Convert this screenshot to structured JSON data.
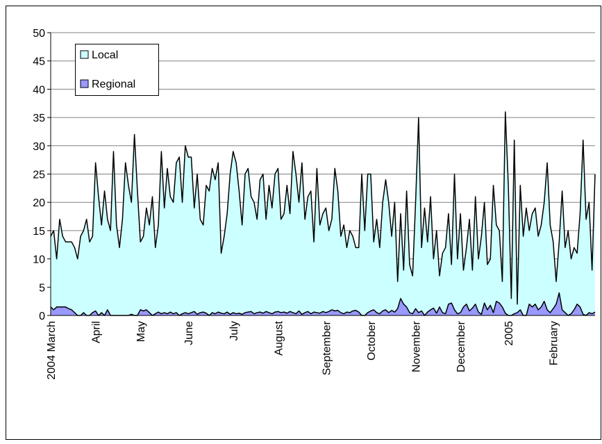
{
  "chart_data": {
    "type": "area",
    "categories": [
      "2004 March",
      null,
      null,
      null,
      null,
      null,
      null,
      null,
      null,
      null,
      null,
      null,
      null,
      null,
      null,
      "April",
      null,
      null,
      null,
      null,
      null,
      null,
      null,
      null,
      null,
      null,
      null,
      null,
      null,
      null,
      "May",
      null,
      null,
      null,
      null,
      null,
      null,
      null,
      null,
      null,
      null,
      null,
      null,
      null,
      null,
      null,
      "June",
      null,
      null,
      null,
      null,
      null,
      null,
      null,
      null,
      null,
      null,
      null,
      null,
      null,
      null,
      "July",
      null,
      null,
      null,
      null,
      null,
      null,
      null,
      null,
      null,
      null,
      null,
      null,
      null,
      null,
      "August",
      null,
      null,
      null,
      null,
      null,
      null,
      null,
      null,
      null,
      null,
      null,
      null,
      null,
      null,
      null,
      "September",
      null,
      null,
      null,
      null,
      null,
      null,
      null,
      null,
      null,
      null,
      null,
      null,
      null,
      null,
      "October",
      null,
      null,
      null,
      null,
      null,
      null,
      null,
      null,
      null,
      null,
      null,
      null,
      null,
      null,
      "November",
      null,
      null,
      null,
      null,
      null,
      null,
      null,
      null,
      null,
      null,
      null,
      null,
      null,
      null,
      "December",
      null,
      null,
      null,
      null,
      null,
      null,
      null,
      null,
      null,
      null,
      null,
      null,
      null,
      null,
      null,
      "2005",
      null,
      null,
      null,
      null,
      null,
      null,
      null,
      null,
      null,
      null,
      null,
      null,
      null,
      null,
      "February",
      null,
      null,
      null,
      null,
      null,
      null,
      null,
      null,
      null,
      null,
      null,
      null,
      null,
      null
    ],
    "series": [
      {
        "name": "Local",
        "color": "#ccffff",
        "values": [
          14,
          15,
          10,
          17,
          14,
          13,
          13,
          13,
          12,
          10,
          14,
          15,
          17,
          13,
          14,
          27,
          21,
          16,
          22,
          17,
          15,
          29,
          16,
          12,
          17,
          27,
          23,
          20,
          32,
          22,
          13,
          14,
          19,
          16,
          21,
          12,
          16,
          29,
          19,
          26,
          21,
          20,
          27,
          28,
          20,
          30,
          28,
          28,
          19,
          25,
          17,
          16,
          23,
          22,
          26,
          24,
          27,
          11,
          14,
          18,
          25,
          29,
          27,
          22,
          16,
          25,
          26,
          21,
          20,
          17,
          24,
          25,
          17,
          23,
          19,
          25,
          26,
          17,
          18,
          23,
          18,
          29,
          25,
          20,
          27,
          17,
          21,
          22,
          13,
          26,
          16,
          18,
          19,
          15,
          17,
          26,
          22,
          14,
          16,
          12,
          15,
          14,
          12,
          12,
          25,
          15,
          25,
          25,
          13,
          17,
          12,
          20,
          24,
          20,
          14,
          20,
          6,
          18,
          8,
          22,
          9,
          7,
          20,
          35,
          12,
          19,
          13,
          21,
          10,
          15,
          7,
          11,
          12,
          18,
          9,
          25,
          10,
          18,
          8,
          12,
          17,
          8,
          21,
          10,
          14,
          20,
          9,
          10,
          23,
          16,
          15,
          6,
          36,
          23,
          3,
          31,
          2,
          23,
          14,
          19,
          15,
          18,
          19,
          14,
          16,
          20,
          27,
          16,
          13,
          6,
          13,
          22,
          12,
          15,
          10,
          12,
          11,
          18,
          31,
          17,
          20,
          8,
          25
        ]
      },
      {
        "name": "Regional",
        "color": "#9999ff",
        "values": [
          1.5,
          1,
          1.5,
          1.5,
          1.5,
          1.5,
          1.2,
          1,
          0.5,
          0,
          0,
          0.5,
          0,
          0,
          0.5,
          0.8,
          0,
          0.5,
          0,
          1,
          0,
          0,
          0,
          0,
          0,
          0,
          0,
          0.2,
          0,
          0,
          1,
          0.8,
          1,
          0.5,
          0,
          0.3,
          0.6,
          0.3,
          0.5,
          0.3,
          0.6,
          0.3,
          0.5,
          0,
          0.3,
          0.5,
          0.3,
          0.5,
          0.7,
          0.2,
          0.5,
          0.6,
          0.4,
          0,
          0.5,
          0.3,
          0.6,
          0.4,
          0.3,
          0.6,
          0.2,
          0.5,
          0.3,
          0.4,
          0.2,
          0.5,
          0.6,
          0.7,
          0.3,
          0.5,
          0.6,
          0.4,
          0.7,
          0.5,
          0.3,
          0.6,
          0.7,
          0.5,
          0.6,
          0.4,
          0.7,
          0.5,
          0.3,
          0.8,
          0.2,
          0.5,
          0.7,
          0.3,
          0.6,
          0.5,
          0.4,
          0.7,
          0.5,
          0.7,
          1,
          0.8,
          0.9,
          0.5,
          0.3,
          0.6,
          0.5,
          0.8,
          0.9,
          0.6,
          0,
          0,
          0.5,
          0.8,
          1,
          0.5,
          0.3,
          0.8,
          1,
          0.5,
          0.9,
          0.6,
          1.2,
          3,
          2,
          1.5,
          0.5,
          0.3,
          1.2,
          0.5,
          0.8,
          0,
          0.6,
          1,
          1.3,
          0.4,
          1.5,
          0.5,
          0.3,
          2,
          2.2,
          1,
          0.3,
          0.5,
          1.5,
          2,
          0.8,
          1.3,
          2,
          0.6,
          0.2,
          2.2,
          1,
          1.8,
          0.5,
          2.5,
          2.2,
          1.5,
          0.4,
          0,
          0,
          0.3,
          0.5,
          1,
          0,
          0,
          2,
          1.5,
          2,
          1,
          1.5,
          2.5,
          1,
          0.5,
          1.2,
          2,
          4,
          1,
          0.5,
          0,
          0.3,
          1,
          2,
          1.5,
          0.2,
          0,
          0.5,
          0.3,
          0.6
        ]
      }
    ],
    "ylim": [
      0,
      50
    ],
    "yticks": [
      0,
      5,
      10,
      15,
      20,
      25,
      30,
      35,
      40,
      45,
      50
    ],
    "grid": true,
    "legend": "upper-left"
  }
}
